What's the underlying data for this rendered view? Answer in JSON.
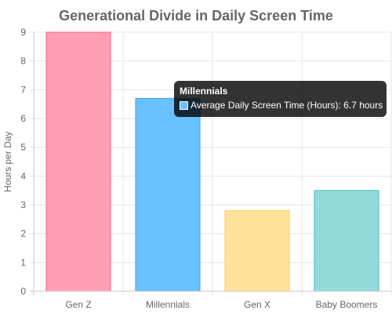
{
  "chart_data": {
    "type": "bar",
    "title": "Generational Divide in Daily Screen Time",
    "xlabel": "",
    "ylabel": "Hours per Day",
    "ylim": [
      0,
      9
    ],
    "y_ticks": [
      "0",
      "1",
      "2",
      "3",
      "4",
      "5",
      "6",
      "7",
      "8",
      "9"
    ],
    "grid": true,
    "legend": "none",
    "categories": [
      "Gen Z",
      "Millennials",
      "Gen X",
      "Baby Boomers"
    ],
    "series": [
      {
        "name": "Average Daily Screen Time (Hours)",
        "values": [
          9.0,
          6.7,
          2.8,
          3.5
        ],
        "colors": [
          "#FF9FB5",
          "#6AC1FF",
          "#FFE29A",
          "#94DADB"
        ],
        "border_colors": [
          "#FF6384",
          "#36A2EB",
          "#FFCE56",
          "#4BC0C0"
        ]
      }
    ]
  },
  "tooltip": {
    "title": "Millennials",
    "label": "Average Daily Screen Time (Hours): 6.7 hours",
    "swatch_color": "#6AC1FF"
  }
}
